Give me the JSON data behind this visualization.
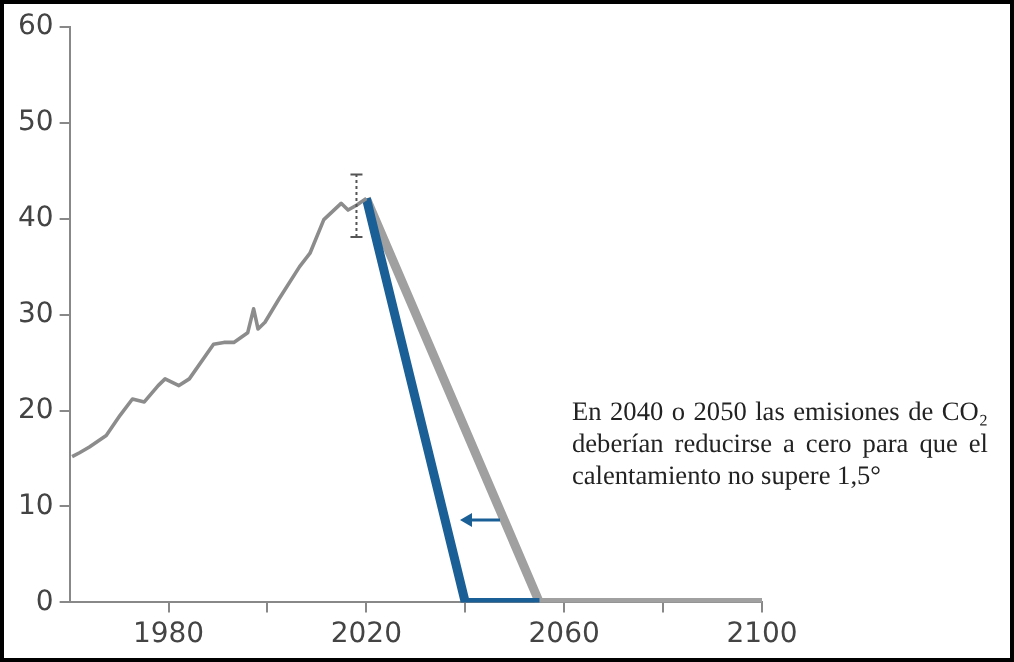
{
  "chart_data": {
    "type": "line",
    "xlim": [
      1960,
      2100
    ],
    "xticks": [
      1980,
      {
        "value": 2000,
        "label": null
      },
      2020,
      {
        "value": 2040,
        "label": null
      },
      2060,
      {
        "value": 2080,
        "label": null
      },
      2100
    ],
    "ylim": [
      0,
      60
    ],
    "yticks": [
      0,
      10,
      20,
      30,
      40,
      50,
      60
    ],
    "series": [
      {
        "color": "#8c8c8c",
        "x": [
          1960.5,
          1962,
          1964,
          1967.4,
          1970.2,
          1972.7,
          1975.1,
          1977.9,
          1979.3,
          1982.1,
          1984.2,
          1989.1,
          1991.2,
          1993.2,
          1996,
          1997.2,
          1998.1,
          1999.5,
          2002.3,
          2006.5,
          2008.6,
          2011.4,
          2014.9,
          2016.3,
          2018,
          2020
        ],
        "values": [
          15.2,
          15.6,
          16.2,
          17.4,
          19.5,
          21.2,
          20.9,
          22.6,
          23.3,
          22.6,
          23.3,
          26.9,
          27.1,
          27.1,
          28.1,
          30.6,
          28.5,
          29.2,
          31.6,
          35,
          36.4,
          39.9,
          41.6,
          40.9,
          41.4,
          42.1
        ],
        "errors": [
          null,
          null,
          null,
          null,
          null,
          null,
          null,
          null,
          null,
          null,
          null,
          null,
          null,
          null,
          null,
          null,
          null,
          null,
          null,
          null,
          null,
          null,
          null,
          null,
          [
            38.1,
            44.6
          ],
          null
        ]
      },
      {
        "color": "#1a5f96",
        "x": [
          2020,
          2040,
          2055
        ],
        "values": [
          42.1,
          0,
          0
        ]
      },
      {
        "color": "#a0a0a0",
        "x": [
          2020,
          2055,
          2100
        ],
        "values": [
          42.1,
          0,
          0
        ]
      }
    ],
    "annotations": [
      "En 2040 o 2050 las emisiones de CO₂ deberían reducirse a cero para que el calentamiento no supere 1,5°"
    ],
    "grid": false,
    "legend": false,
    "marker": "none",
    "line_style": "solid"
  }
}
